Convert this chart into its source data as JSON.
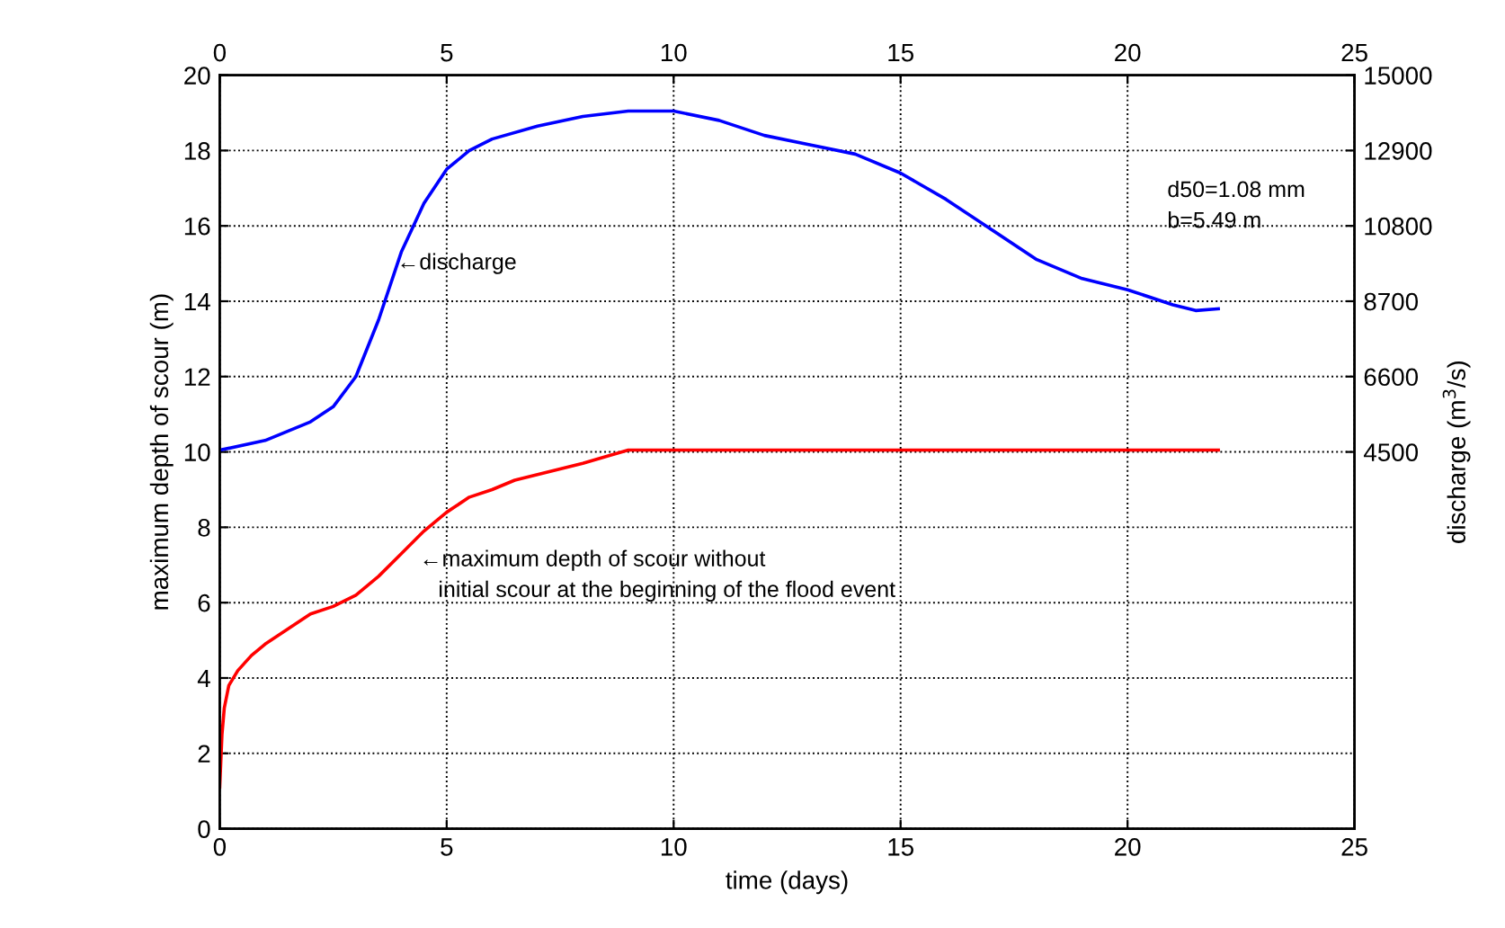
{
  "chart_data": {
    "type": "line",
    "xlabel": "time (days)",
    "ylabel": "maximum depth of scour (m)",
    "y2label": "discharge (m$^{3}$/s)",
    "xlim": [
      0,
      25
    ],
    "xticks": [
      0,
      5,
      10,
      15,
      20,
      25
    ],
    "x2lim": [
      0,
      25
    ],
    "x2ticks": [
      0,
      5,
      10,
      15,
      20,
      25
    ],
    "ylim": [
      0,
      20
    ],
    "yticks": [
      0,
      2,
      4,
      6,
      8,
      10,
      12,
      14,
      16,
      18,
      20
    ],
    "y2lim": [
      -6000,
      15000
    ],
    "y2ticks": [
      4500,
      6600,
      8700,
      10800,
      12900,
      15000
    ],
    "grid": true,
    "line_style": "solid",
    "marker": "none",
    "series": [
      {
        "color": "#0000ff",
        "axis": "y2",
        "x": [
          0,
          1,
          2,
          2.5,
          3,
          3.5,
          4,
          4.5,
          5,
          5.5,
          6,
          7,
          8,
          9,
          10,
          11,
          12,
          13,
          14,
          15,
          16,
          17,
          18,
          19,
          20,
          21,
          21.5,
          22
        ],
        "values": [
          4550,
          4820,
          5340,
          5760,
          6600,
          8180,
          10070,
          11430,
          12380,
          12900,
          13220,
          13580,
          13850,
          14000,
          14000,
          13740,
          13320,
          13060,
          12800,
          12270,
          11540,
          10700,
          9860,
          9330,
          9020,
          8600,
          8440,
          8490
        ]
      },
      {
        "color": "#ff0000",
        "axis": "y",
        "x": [
          0,
          0.05,
          0.1,
          0.2,
          0.4,
          0.7,
          1,
          1.5,
          2,
          2.5,
          3,
          3.5,
          4,
          4.5,
          5,
          5.5,
          6,
          6.5,
          7,
          8,
          9,
          22
        ],
        "values": [
          1.1,
          2.5,
          3.2,
          3.8,
          4.2,
          4.6,
          4.9,
          5.3,
          5.7,
          5.9,
          6.2,
          6.7,
          7.3,
          7.9,
          8.4,
          8.8,
          9.0,
          9.25,
          9.4,
          9.7,
          10.05,
          10.05
        ]
      }
    ],
    "annotations": [
      {
        "text": "←discharge",
        "x": 3.9,
        "y": 15
      },
      "←maximum depth of scour without\n   initial scour at the beginning of the flood event",
      "d50=1.08 mm\nb=5.49 m"
    ]
  }
}
